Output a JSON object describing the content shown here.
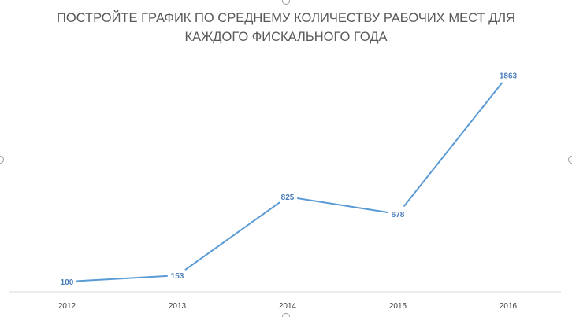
{
  "chart_data": {
    "type": "line",
    "title_lines": [
      "ПОСТРОЙТЕ ГРАФИК ПО СРЕДНЕМУ КОЛИЧЕСТВУ РАБОЧИХ МЕСТ ДЛЯ",
      "КАЖДОГО ФИСКАЛЬНОГО ГОДА"
    ],
    "categories": [
      "2012",
      "2013",
      "2014",
      "2015",
      "2016"
    ],
    "series": [
      {
        "values": [
          100,
          153,
          825,
          678,
          1863
        ]
      }
    ],
    "data_labels": [
      "100",
      "153",
      "825",
      "678",
      "1863"
    ],
    "ylim": [
      0,
      2000
    ],
    "grid": false,
    "legend": "none",
    "line_color": "#5b9bd5",
    "label_color": "#4a7ebb",
    "axis_color": "#d9d9d9"
  }
}
